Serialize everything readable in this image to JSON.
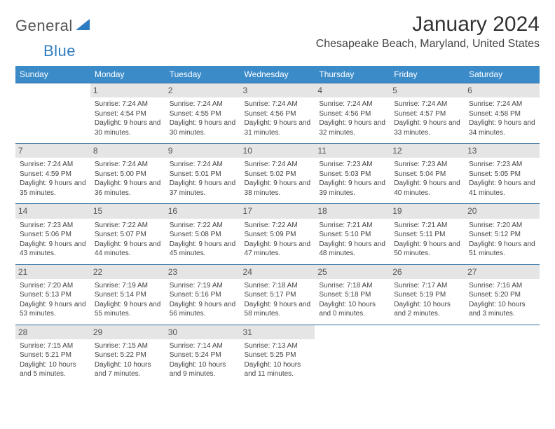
{
  "logo": {
    "word1": "General",
    "word2": "Blue"
  },
  "title": "January 2024",
  "location": "Chesapeake Beach, Maryland, United States",
  "colors": {
    "header_bg": "#3b8bc9",
    "header_text": "#ffffff",
    "daynum_bg": "#e5e5e5",
    "row_border": "#2d6fa3",
    "body_text": "#444444",
    "logo_blue": "#2d7cc1"
  },
  "day_names": [
    "Sunday",
    "Monday",
    "Tuesday",
    "Wednesday",
    "Thursday",
    "Friday",
    "Saturday"
  ],
  "weeks": [
    [
      {
        "n": "",
        "sr": "",
        "ss": "",
        "dl": ""
      },
      {
        "n": "1",
        "sr": "Sunrise: 7:24 AM",
        "ss": "Sunset: 4:54 PM",
        "dl": "Daylight: 9 hours and 30 minutes."
      },
      {
        "n": "2",
        "sr": "Sunrise: 7:24 AM",
        "ss": "Sunset: 4:55 PM",
        "dl": "Daylight: 9 hours and 30 minutes."
      },
      {
        "n": "3",
        "sr": "Sunrise: 7:24 AM",
        "ss": "Sunset: 4:56 PM",
        "dl": "Daylight: 9 hours and 31 minutes."
      },
      {
        "n": "4",
        "sr": "Sunrise: 7:24 AM",
        "ss": "Sunset: 4:56 PM",
        "dl": "Daylight: 9 hours and 32 minutes."
      },
      {
        "n": "5",
        "sr": "Sunrise: 7:24 AM",
        "ss": "Sunset: 4:57 PM",
        "dl": "Daylight: 9 hours and 33 minutes."
      },
      {
        "n": "6",
        "sr": "Sunrise: 7:24 AM",
        "ss": "Sunset: 4:58 PM",
        "dl": "Daylight: 9 hours and 34 minutes."
      }
    ],
    [
      {
        "n": "7",
        "sr": "Sunrise: 7:24 AM",
        "ss": "Sunset: 4:59 PM",
        "dl": "Daylight: 9 hours and 35 minutes."
      },
      {
        "n": "8",
        "sr": "Sunrise: 7:24 AM",
        "ss": "Sunset: 5:00 PM",
        "dl": "Daylight: 9 hours and 36 minutes."
      },
      {
        "n": "9",
        "sr": "Sunrise: 7:24 AM",
        "ss": "Sunset: 5:01 PM",
        "dl": "Daylight: 9 hours and 37 minutes."
      },
      {
        "n": "10",
        "sr": "Sunrise: 7:24 AM",
        "ss": "Sunset: 5:02 PM",
        "dl": "Daylight: 9 hours and 38 minutes."
      },
      {
        "n": "11",
        "sr": "Sunrise: 7:23 AM",
        "ss": "Sunset: 5:03 PM",
        "dl": "Daylight: 9 hours and 39 minutes."
      },
      {
        "n": "12",
        "sr": "Sunrise: 7:23 AM",
        "ss": "Sunset: 5:04 PM",
        "dl": "Daylight: 9 hours and 40 minutes."
      },
      {
        "n": "13",
        "sr": "Sunrise: 7:23 AM",
        "ss": "Sunset: 5:05 PM",
        "dl": "Daylight: 9 hours and 41 minutes."
      }
    ],
    [
      {
        "n": "14",
        "sr": "Sunrise: 7:23 AM",
        "ss": "Sunset: 5:06 PM",
        "dl": "Daylight: 9 hours and 43 minutes."
      },
      {
        "n": "15",
        "sr": "Sunrise: 7:22 AM",
        "ss": "Sunset: 5:07 PM",
        "dl": "Daylight: 9 hours and 44 minutes."
      },
      {
        "n": "16",
        "sr": "Sunrise: 7:22 AM",
        "ss": "Sunset: 5:08 PM",
        "dl": "Daylight: 9 hours and 45 minutes."
      },
      {
        "n": "17",
        "sr": "Sunrise: 7:22 AM",
        "ss": "Sunset: 5:09 PM",
        "dl": "Daylight: 9 hours and 47 minutes."
      },
      {
        "n": "18",
        "sr": "Sunrise: 7:21 AM",
        "ss": "Sunset: 5:10 PM",
        "dl": "Daylight: 9 hours and 48 minutes."
      },
      {
        "n": "19",
        "sr": "Sunrise: 7:21 AM",
        "ss": "Sunset: 5:11 PM",
        "dl": "Daylight: 9 hours and 50 minutes."
      },
      {
        "n": "20",
        "sr": "Sunrise: 7:20 AM",
        "ss": "Sunset: 5:12 PM",
        "dl": "Daylight: 9 hours and 51 minutes."
      }
    ],
    [
      {
        "n": "21",
        "sr": "Sunrise: 7:20 AM",
        "ss": "Sunset: 5:13 PM",
        "dl": "Daylight: 9 hours and 53 minutes."
      },
      {
        "n": "22",
        "sr": "Sunrise: 7:19 AM",
        "ss": "Sunset: 5:14 PM",
        "dl": "Daylight: 9 hours and 55 minutes."
      },
      {
        "n": "23",
        "sr": "Sunrise: 7:19 AM",
        "ss": "Sunset: 5:16 PM",
        "dl": "Daylight: 9 hours and 56 minutes."
      },
      {
        "n": "24",
        "sr": "Sunrise: 7:18 AM",
        "ss": "Sunset: 5:17 PM",
        "dl": "Daylight: 9 hours and 58 minutes."
      },
      {
        "n": "25",
        "sr": "Sunrise: 7:18 AM",
        "ss": "Sunset: 5:18 PM",
        "dl": "Daylight: 10 hours and 0 minutes."
      },
      {
        "n": "26",
        "sr": "Sunrise: 7:17 AM",
        "ss": "Sunset: 5:19 PM",
        "dl": "Daylight: 10 hours and 2 minutes."
      },
      {
        "n": "27",
        "sr": "Sunrise: 7:16 AM",
        "ss": "Sunset: 5:20 PM",
        "dl": "Daylight: 10 hours and 3 minutes."
      }
    ],
    [
      {
        "n": "28",
        "sr": "Sunrise: 7:15 AM",
        "ss": "Sunset: 5:21 PM",
        "dl": "Daylight: 10 hours and 5 minutes."
      },
      {
        "n": "29",
        "sr": "Sunrise: 7:15 AM",
        "ss": "Sunset: 5:22 PM",
        "dl": "Daylight: 10 hours and 7 minutes."
      },
      {
        "n": "30",
        "sr": "Sunrise: 7:14 AM",
        "ss": "Sunset: 5:24 PM",
        "dl": "Daylight: 10 hours and 9 minutes."
      },
      {
        "n": "31",
        "sr": "Sunrise: 7:13 AM",
        "ss": "Sunset: 5:25 PM",
        "dl": "Daylight: 10 hours and 11 minutes."
      },
      {
        "n": "",
        "sr": "",
        "ss": "",
        "dl": ""
      },
      {
        "n": "",
        "sr": "",
        "ss": "",
        "dl": ""
      },
      {
        "n": "",
        "sr": "",
        "ss": "",
        "dl": ""
      }
    ]
  ]
}
